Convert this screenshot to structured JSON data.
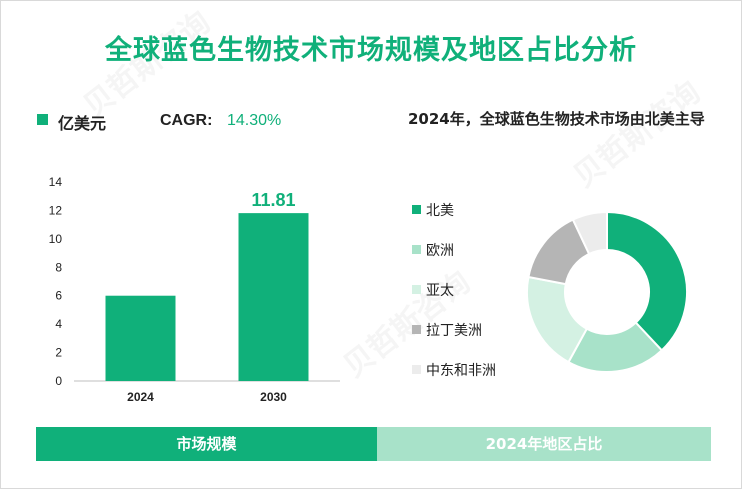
{
  "title": "全球蓝色生物技术市场规模及地区占比分析",
  "left_panel": {
    "unit_label": "亿美元",
    "cagr_label": "CAGR:",
    "cagr_value": "14.30%"
  },
  "right_panel": {
    "title": "2024年，全球蓝色生物技术市场由北美主导"
  },
  "bottom_bar": {
    "left_label": "市场规模",
    "right_label": "2024年地区占比"
  },
  "watermark_text": "贝哲斯咨询",
  "colors": {
    "primary": "#10b07a",
    "light": "#a8e2c9"
  },
  "chart_data": [
    {
      "type": "bar",
      "categories": [
        "2024",
        "2030"
      ],
      "values": [
        6.0,
        11.81
      ],
      "data_labels": [
        "",
        "11.81"
      ],
      "ylim": [
        0,
        14
      ],
      "yticks": [
        0,
        2,
        4,
        6,
        8,
        10,
        12,
        14
      ],
      "xlabel": "",
      "ylabel": "",
      "grid": false
    },
    {
      "type": "pie",
      "style": "donut",
      "labels": [
        "北美",
        "欧洲",
        "亚太",
        "拉丁美洲",
        "中东和非洲"
      ],
      "values": [
        38,
        20,
        20,
        15,
        7
      ],
      "colors": [
        "#10b07a",
        "#a8e2c9",
        "#d4f1e3",
        "#b5b5b5",
        "#ececec"
      ]
    }
  ]
}
